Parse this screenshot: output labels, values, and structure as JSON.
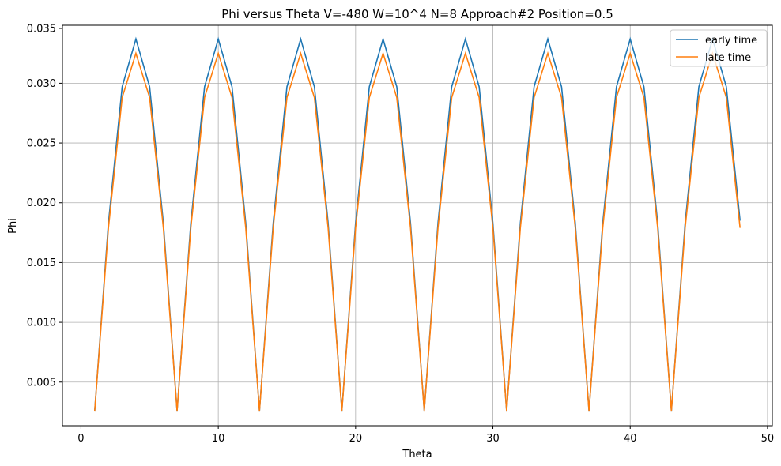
{
  "chart_data": {
    "type": "line",
    "title": "Phi versus Theta    V=-480    W=10^4    N=8    Approach#2  Position=0.5",
    "xlabel": "Theta",
    "ylabel": "Phi",
    "xlim": [
      -1.35,
      50.35
    ],
    "ylim": [
      0.00135,
      0.03485
    ],
    "xticks": [
      0,
      10,
      20,
      30,
      40,
      50
    ],
    "xtick_labels": [
      "0",
      "10",
      "20",
      "30",
      "40",
      "50"
    ],
    "yticks": [
      0.005,
      0.01,
      0.015,
      0.02,
      0.025,
      0.03
    ],
    "ytick_labels": [
      "0.005",
      "0.010",
      "0.015",
      "0.020",
      "0.025",
      "0.030"
    ],
    "ytop_label": "0.035",
    "grid": true,
    "legend_position": "top-right",
    "x": [
      1,
      2,
      3,
      4,
      5,
      6,
      7,
      8,
      9,
      10,
      11,
      12,
      13,
      14,
      15,
      16,
      17,
      18,
      19,
      20,
      21,
      22,
      23,
      24,
      25,
      26,
      27,
      28,
      29,
      30,
      31,
      32,
      33,
      34,
      35,
      36,
      37,
      38,
      39,
      40,
      41,
      42,
      43,
      44,
      45,
      46,
      47,
      48
    ],
    "series": [
      {
        "name": "early time",
        "color": "#1f77b4",
        "values": [
          0.0026,
          0.0183,
          0.0297,
          0.0337,
          0.0297,
          0.0183,
          0.0026,
          0.0183,
          0.0297,
          0.0337,
          0.0297,
          0.0183,
          0.0026,
          0.0183,
          0.0297,
          0.0337,
          0.0297,
          0.0183,
          0.0026,
          0.0183,
          0.0297,
          0.0337,
          0.0297,
          0.0183,
          0.0026,
          0.0183,
          0.0297,
          0.0337,
          0.0297,
          0.0183,
          0.0026,
          0.0183,
          0.0297,
          0.0337,
          0.0297,
          0.0183,
          0.0026,
          0.0183,
          0.0297,
          0.0337,
          0.0297,
          0.0183,
          0.0026,
          0.0183,
          0.0297,
          0.0337,
          0.0297,
          0.0185
        ]
      },
      {
        "name": "late time",
        "color": "#ff7f0e",
        "values": [
          0.0026,
          0.0179,
          0.0288,
          0.0325,
          0.0288,
          0.0179,
          0.0026,
          0.0179,
          0.0288,
          0.0325,
          0.0288,
          0.0179,
          0.0026,
          0.0179,
          0.0288,
          0.0325,
          0.0288,
          0.0179,
          0.0026,
          0.0179,
          0.0288,
          0.0325,
          0.0288,
          0.0179,
          0.0026,
          0.0179,
          0.0288,
          0.0325,
          0.0288,
          0.0179,
          0.0026,
          0.0179,
          0.0288,
          0.0325,
          0.0288,
          0.0179,
          0.0026,
          0.0179,
          0.0288,
          0.0325,
          0.0288,
          0.0179,
          0.0026,
          0.0179,
          0.0288,
          0.0325,
          0.0288,
          0.0179
        ]
      }
    ]
  }
}
